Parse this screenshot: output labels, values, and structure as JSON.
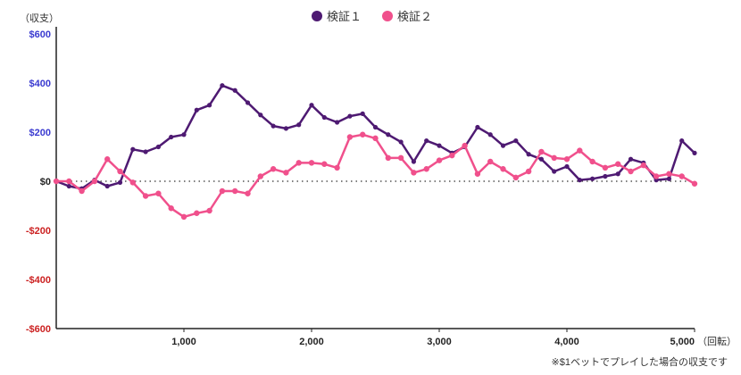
{
  "chart_data": {
    "type": "line",
    "title": "",
    "ylabel": "（収支）",
    "xlabel": "（回転）",
    "note": "※$1ベットでプレイした場合の収支です",
    "xlim": [
      0,
      5000
    ],
    "ylim": [
      -600,
      600
    ],
    "x_ticks": [
      {
        "value": 1000,
        "label": "1,000"
      },
      {
        "value": 2000,
        "label": "2,000"
      },
      {
        "value": 3000,
        "label": "3,000"
      },
      {
        "value": 4000,
        "label": "4,000"
      },
      {
        "value": 5000,
        "label": "5,000"
      }
    ],
    "y_ticks": [
      {
        "value": 600,
        "label": "$600",
        "color": "#3a3ad0"
      },
      {
        "value": 400,
        "label": "$400",
        "color": "#3a3ad0"
      },
      {
        "value": 200,
        "label": "$200",
        "color": "#3a3ad0"
      },
      {
        "value": 0,
        "label": "$0",
        "color": "#222222"
      },
      {
        "value": -200,
        "label": "-$200",
        "color": "#cc2222"
      },
      {
        "value": -400,
        "label": "-$400",
        "color": "#cc2222"
      },
      {
        "value": -600,
        "label": "-$600",
        "color": "#cc2222"
      }
    ],
    "x": [
      0,
      100,
      200,
      300,
      400,
      500,
      600,
      700,
      800,
      900,
      1000,
      1100,
      1200,
      1300,
      1400,
      1500,
      1600,
      1700,
      1800,
      1900,
      2000,
      2100,
      2200,
      2300,
      2400,
      2500,
      2600,
      2700,
      2800,
      2900,
      3000,
      3100,
      3200,
      3300,
      3400,
      3500,
      3600,
      3700,
      3800,
      3900,
      4000,
      4100,
      4200,
      4300,
      4400,
      4500,
      4600,
      4700,
      4800,
      4900,
      5000
    ],
    "series": [
      {
        "name": "検証１",
        "color": "#4e1a72",
        "values": [
          0,
          -20,
          -30,
          5,
          -20,
          -5,
          130,
          120,
          140,
          180,
          190,
          290,
          310,
          390,
          370,
          320,
          270,
          225,
          215,
          230,
          310,
          260,
          240,
          265,
          275,
          220,
          190,
          160,
          80,
          165,
          145,
          115,
          140,
          220,
          190,
          145,
          165,
          110,
          90,
          40,
          60,
          5,
          10,
          20,
          30,
          90,
          75,
          5,
          10,
          165,
          115
        ]
      },
      {
        "name": "検証２",
        "color": "#f0508c",
        "values": [
          0,
          0,
          -40,
          0,
          90,
          40,
          -5,
          -60,
          -50,
          -110,
          -145,
          -130,
          -120,
          -40,
          -40,
          -50,
          20,
          50,
          35,
          75,
          75,
          70,
          55,
          180,
          190,
          175,
          95,
          95,
          35,
          50,
          85,
          105,
          145,
          30,
          80,
          50,
          15,
          40,
          120,
          95,
          90,
          125,
          80,
          55,
          70,
          40,
          65,
          20,
          30,
          20,
          -10
        ]
      }
    ]
  }
}
